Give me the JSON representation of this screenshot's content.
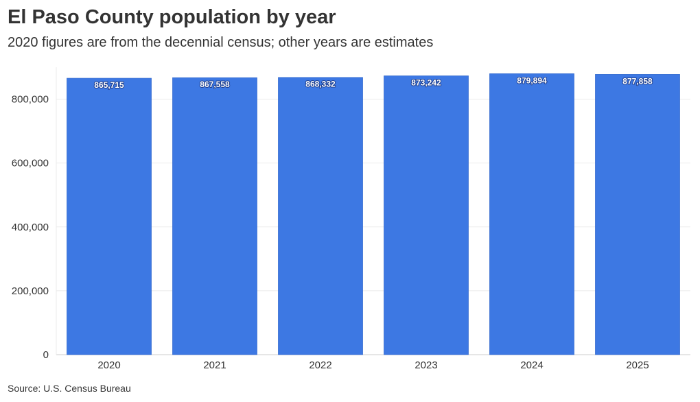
{
  "title": "El Paso County population by year",
  "subtitle": "2020 figures are from the decennial census; other years are estimates",
  "source": "Source: U.S. Census Bureau",
  "colors": {
    "bar": "#3d78e3",
    "grid": "#ebebeb",
    "axis": "#cccccc"
  },
  "chart_data": {
    "type": "bar",
    "title": "El Paso County population by year",
    "subtitle": "2020 figures are from the decennial census; other years are estimates",
    "categories": [
      "2020",
      "2021",
      "2022",
      "2023",
      "2024",
      "2025"
    ],
    "values": [
      865715,
      867558,
      868332,
      873242,
      879894,
      877858
    ],
    "value_labels": [
      "865,715",
      "867,558",
      "868,332",
      "873,242",
      "879,894",
      "877,858"
    ],
    "xlabel": "",
    "ylabel": "",
    "ylim": [
      0,
      900000
    ],
    "yticks": [
      0,
      200000,
      400000,
      600000,
      800000
    ],
    "ytick_labels": [
      "0",
      "200,000",
      "400,000",
      "600,000",
      "800,000"
    ],
    "grid": true,
    "legend": "none"
  }
}
